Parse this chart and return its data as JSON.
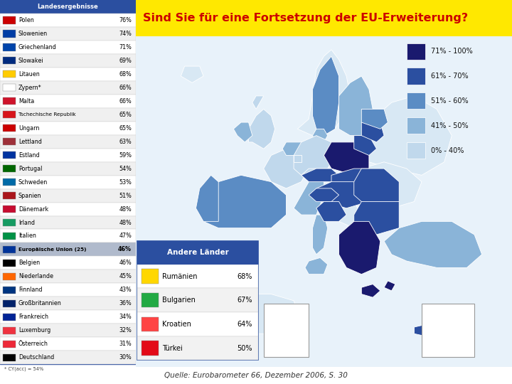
{
  "title": "Sind Sie für eine Fortsetzung der EU-Erweiterung?",
  "title_bg": "#FFE800",
  "title_color": "#CC0000",
  "source": "Quelle: Eurobarometer 66, Dezember 2006, S. 30",
  "left_table_header": "Landesergebnisse",
  "left_table_header_bg": "#2B4FA0",
  "left_table_header_color": "#FFFFFF",
  "eu_row_bg": "#B0BACC",
  "left_countries": [
    [
      "Polen",
      "76%"
    ],
    [
      "Slowenien",
      "74%"
    ],
    [
      "Griechenland",
      "71%"
    ],
    [
      "Slowakei",
      "69%"
    ],
    [
      "Litauen",
      "68%"
    ],
    [
      "Zypern*",
      "66%"
    ],
    [
      "Malta",
      "66%"
    ],
    [
      "Tschechische Republik",
      "65%"
    ],
    [
      "Ungarn",
      "65%"
    ],
    [
      "Lettland",
      "63%"
    ],
    [
      "Estland",
      "59%"
    ],
    [
      "Portugal",
      "54%"
    ],
    [
      "Schweden",
      "53%"
    ],
    [
      "Spanien",
      "51%"
    ],
    [
      "Dänemark",
      "48%"
    ],
    [
      "Irland",
      "48%"
    ],
    [
      "Italien",
      "47%"
    ],
    [
      "Europäische Union (25)",
      "46%"
    ],
    [
      "Belgien",
      "46%"
    ],
    [
      "Niederlande",
      "45%"
    ],
    [
      "Finnland",
      "43%"
    ],
    [
      "Großbritannien",
      "36%"
    ],
    [
      "Frankreich",
      "34%"
    ],
    [
      "Luxemburg",
      "32%"
    ],
    [
      "Österreich",
      "31%"
    ],
    [
      "Deutschland",
      "30%"
    ]
  ],
  "eu_row_index": 17,
  "footnote": "* CY(acc) = 54%",
  "andere_laender_header": "Andere Länder",
  "andere_laender_header_bg": "#2B4FA0",
  "andere_laender_header_color": "#FFFFFF",
  "andere_laender": [
    [
      "Rumänien",
      "68%"
    ],
    [
      "Bulgarien",
      "67%"
    ],
    [
      "Kroatien",
      "64%"
    ],
    [
      "Türkei",
      "50%"
    ]
  ],
  "legend_items": [
    [
      "71% - 100%",
      "#1A1A6E"
    ],
    [
      "61% - 70%",
      "#2B4FA0"
    ],
    [
      "51% - 60%",
      "#5B8CC4"
    ],
    [
      "41% - 50%",
      "#8AB4D8"
    ],
    [
      "0% - 40%",
      "#C0D8EC"
    ]
  ],
  "bg_color": "#FFFFFF",
  "table_border_color": "#2B4FA0",
  "row_bg_odd": "#FFFFFF",
  "row_bg_even": "#F0F0F0",
  "row_text_color": "#000000",
  "ocean_color": "#E8F2FA",
  "non_eu_color": "#D8E8F4",
  "map_bg": "#D4E8F5"
}
